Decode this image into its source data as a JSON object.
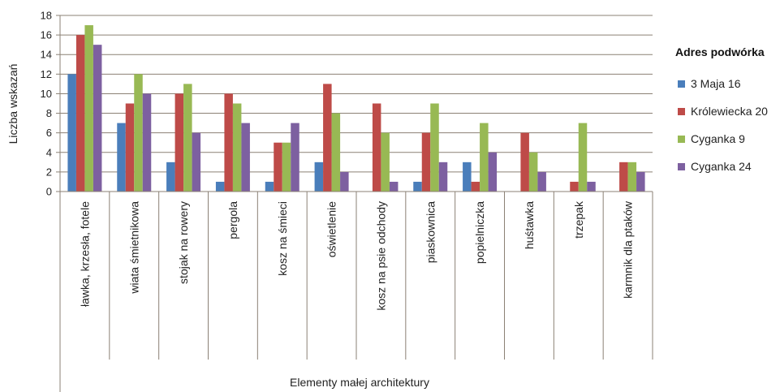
{
  "chart_data": {
    "type": "bar",
    "ylabel": "Liczba wskazań",
    "xlabel": "Elementy małej architektury",
    "ylim": [
      0,
      18
    ],
    "yticks": [
      0,
      2,
      4,
      6,
      8,
      10,
      12,
      14,
      16,
      18
    ],
    "grid": true,
    "legend_title": "Adres podwórka",
    "legend_position": "right",
    "categories": [
      "ławka, krzesła, fotele",
      "wiata śmietnikowa",
      "stojak na rowery",
      "pergola",
      "kosz na śmieci",
      "oświetlenie",
      "kosz na psie odchody",
      "piaskownica",
      "popielniczka",
      "huśtawka",
      "trzepak",
      "karmnik dla ptaków"
    ],
    "series": [
      {
        "name": "3 Maja 16",
        "color": "#4a7ebb",
        "values": [
          12,
          7,
          3,
          1,
          1,
          3,
          0,
          1,
          3,
          0,
          0,
          0
        ]
      },
      {
        "name": "Królewiecka 20",
        "color": "#be4b48",
        "values": [
          16,
          9,
          10,
          10,
          5,
          11,
          9,
          6,
          1,
          6,
          1,
          3
        ]
      },
      {
        "name": "Cyganka 9",
        "color": "#98b954",
        "values": [
          17,
          12,
          11,
          9,
          5,
          8,
          6,
          9,
          7,
          4,
          7,
          3
        ]
      },
      {
        "name": "Cyganka 24",
        "color": "#7d60a0",
        "values": [
          15,
          10,
          6,
          7,
          7,
          2,
          1,
          3,
          4,
          2,
          1,
          2
        ]
      }
    ]
  }
}
